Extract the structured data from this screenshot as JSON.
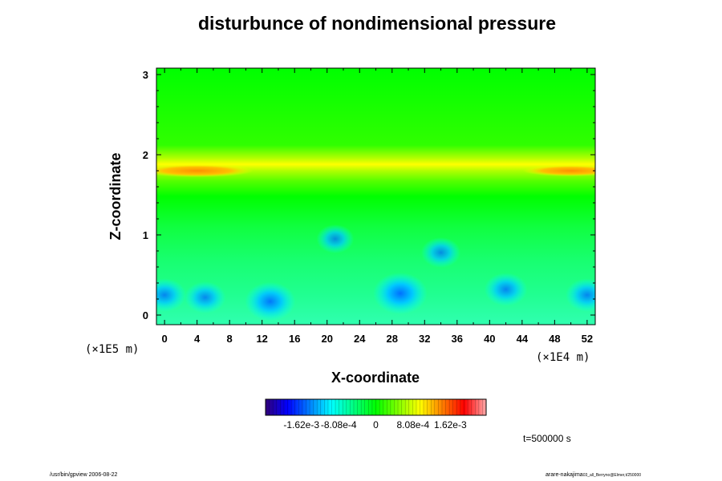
{
  "chart_data": {
    "type": "heatmap",
    "title": "disturbunce of nondimensional pressure",
    "xlabel": "X-coordinate",
    "ylabel": "Z-coordinate",
    "x_ticks": [
      "0",
      "4",
      "8",
      "12",
      "16",
      "20",
      "24",
      "28",
      "32",
      "36",
      "40",
      "44",
      "48",
      "52"
    ],
    "y_ticks": [
      "0",
      "1",
      "2",
      "3"
    ],
    "x_unit": "(×1E4 m)",
    "y_unit": "(×1E5 m)",
    "xlim": [
      -1,
      53
    ],
    "ylim": [
      -0.12,
      3.08
    ],
    "colorbar": {
      "ticks": [
        "-1.62e-3",
        "-8.08e-4",
        "0",
        "8.08e-4",
        "1.62e-3"
      ],
      "tick_values": [
        -0.00162,
        -0.000808,
        0,
        0.000808,
        0.00162
      ],
      "range": [
        -0.0024,
        0.0024
      ],
      "colors": [
        "#30007a",
        "#0000ff",
        "#0080ff",
        "#00ffff",
        "#00ff80",
        "#00ff00",
        "#80ff00",
        "#ffff00",
        "#ff8000",
        "#ff0000",
        "#ffaaaa"
      ]
    },
    "field": {
      "background_value": 0.0,
      "bands": [
        {
          "z": 1.82,
          "value": 0.0011,
          "label": "positive band near z=1.8"
        }
      ],
      "minima": [
        {
          "x": 0,
          "z": 0.25,
          "value": -0.0012
        },
        {
          "x": 5,
          "z": 0.22,
          "value": -0.0011
        },
        {
          "x": 13,
          "z": 0.17,
          "value": -0.0016
        },
        {
          "x": 21,
          "z": 0.95,
          "value": -0.0009
        },
        {
          "x": 29,
          "z": 0.27,
          "value": -0.0018
        },
        {
          "x": 34,
          "z": 0.78,
          "value": -0.001
        },
        {
          "x": 42,
          "z": 0.32,
          "value": -0.0012
        },
        {
          "x": 52,
          "z": 0.25,
          "value": -0.0012
        }
      ]
    },
    "grid": false,
    "legend": "colorbar-bottom"
  },
  "time_label": "t=500000 s",
  "footer": {
    "left": "/usr/bin/gpview 2006-08-22",
    "right_main": "arare-nakajima",
    "right_sub": "03_all_Berryno@Elmer,t/250000"
  }
}
